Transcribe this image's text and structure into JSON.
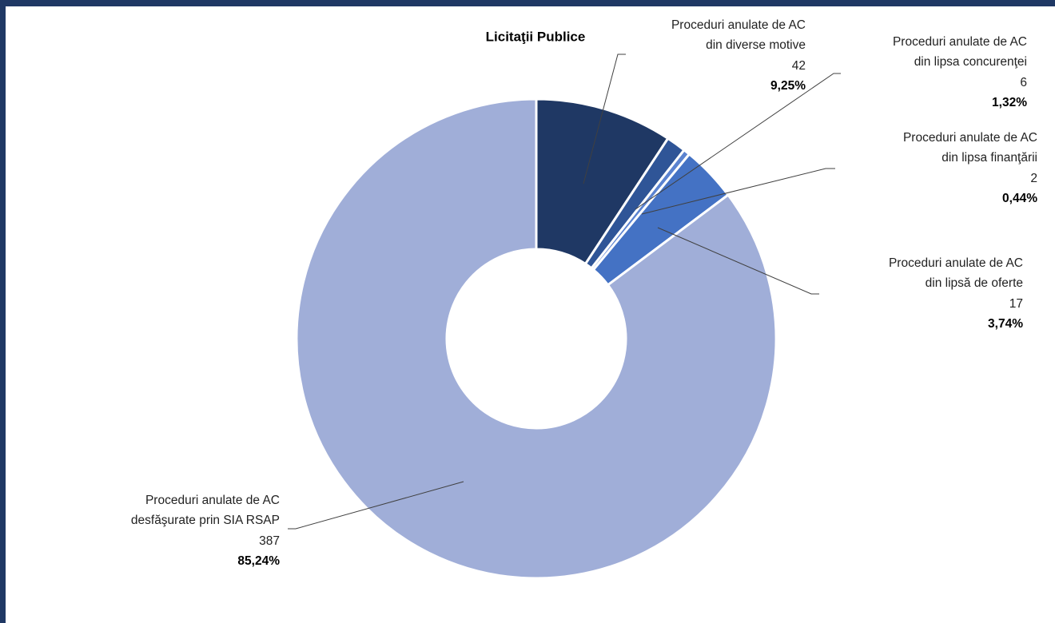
{
  "chart_data": {
    "type": "donut",
    "title": "Licitaţii Publice",
    "categories": [
      [
        "Proceduri anulate de AC",
        "din diverse motive"
      ],
      [
        "Proceduri anulate de AC",
        "din lipsa concurenţei"
      ],
      [
        "Proceduri anulate de AC",
        "din lipsa finanţării"
      ],
      [
        "Proceduri anulate de AC",
        "din lipsă de oferte"
      ],
      [
        "Proceduri anulate de AC",
        "desfăşurate prin SIA RSAP"
      ]
    ],
    "values": [
      42,
      6,
      2,
      17,
      387
    ],
    "percent_labels": [
      "9,25%",
      "1,32%",
      "0,44%",
      "3,74%",
      "85,24%"
    ],
    "colors": [
      "#1f3864",
      "#2f5597",
      "#5b83d0",
      "#4472c4",
      "#a0aed8"
    ]
  }
}
